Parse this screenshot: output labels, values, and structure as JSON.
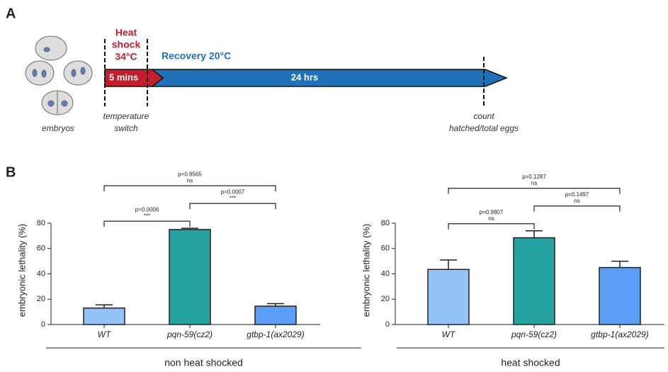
{
  "panel_labels": [
    "A",
    "B"
  ],
  "diagram": {
    "heat_lines": [
      "Heat",
      "shock",
      "34°C"
    ],
    "heat_duration": "5 mins",
    "recovery": "Recovery 20°C",
    "recovery_duration": "24 hrs",
    "switch_lines": [
      "temperature",
      "switch"
    ],
    "embryos": "embryos",
    "count_lines": [
      "count",
      "hatched/total eggs"
    ]
  },
  "chart_data": [
    {
      "type": "bar",
      "categories": [
        "WT",
        "pqn-59(cz2)",
        "gtbp-1(ax2029)"
      ],
      "values": [
        13,
        75,
        14.5
      ],
      "errors": [
        2.5,
        1,
        2
      ],
      "colors": [
        "#94c4f7",
        "#26a2a0",
        "#5c9df5"
      ],
      "ylabel": "embryonic lethality (%)",
      "xlabel": "non heat shocked",
      "ylim": [
        0,
        80
      ],
      "yticks": [
        0,
        20,
        40,
        60,
        80
      ],
      "comparisons": [
        {
          "pair": [
            "WT",
            "pqn-59(cz2)"
          ],
          "p": "p=0.0006",
          "sig": "***"
        },
        {
          "pair": [
            "pqn-59(cz2)",
            "gtbp-1(ax2029)"
          ],
          "p": "p=0.0007",
          "sig": "***"
        },
        {
          "pair": [
            "WT",
            "gtbp-1(ax2029)"
          ],
          "p": "p=0.8565",
          "sig": "ns"
        }
      ]
    },
    {
      "type": "bar",
      "categories": [
        "WT",
        "pqn-59(cz2)",
        "gtbp-1(ax2029)"
      ],
      "values": [
        43.5,
        68.5,
        45
      ],
      "errors": [
        7.5,
        5.5,
        5
      ],
      "colors": [
        "#94c4f7",
        "#26a2a0",
        "#5c9df5"
      ],
      "ylabel": "embryonic lethality (%)",
      "xlabel": "heat shocked",
      "ylim": [
        0,
        80
      ],
      "yticks": [
        0,
        20,
        40,
        60,
        80
      ],
      "comparisons": [
        {
          "pair": [
            "WT",
            "pqn-59(cz2)"
          ],
          "p": "p=0.9807",
          "sig": "ns"
        },
        {
          "pair": [
            "pqn-59(cz2)",
            "gtbp-1(ax2029)"
          ],
          "p": "p=0.1497",
          "sig": "ns"
        },
        {
          "pair": [
            "WT",
            "gtbp-1(ax2029)"
          ],
          "p": "p=0.1287",
          "sig": "ns"
        }
      ]
    }
  ]
}
